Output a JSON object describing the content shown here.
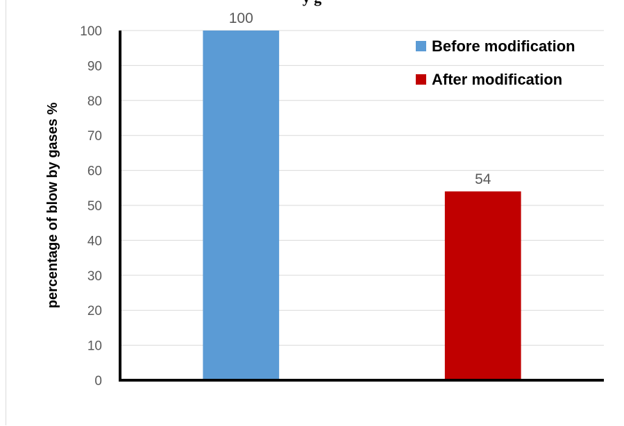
{
  "chart_data": {
    "type": "bar",
    "title": "",
    "title_fragment": "y g",
    "categories": [
      "Before modification",
      "After modification"
    ],
    "series": [
      {
        "name": "Before modification",
        "values": [
          100,
          null
        ],
        "color": "#5b9bd5"
      },
      {
        "name": "After modification",
        "values": [
          null,
          54
        ],
        "color": "#c00000"
      }
    ],
    "data_labels": [
      "100",
      "54"
    ],
    "xlabel": "",
    "ylabel": "percentage of blow by gases  %",
    "ylim": [
      0,
      100
    ],
    "yticks": [
      0,
      10,
      20,
      30,
      40,
      50,
      60,
      70,
      80,
      90,
      100
    ],
    "grid": true,
    "legend_position": "top-right"
  }
}
